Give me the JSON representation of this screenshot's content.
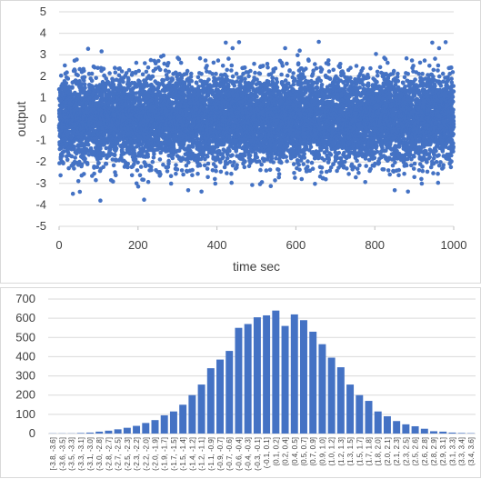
{
  "chart_data": [
    {
      "type": "scatter",
      "title": "",
      "xlabel": "time sec",
      "ylabel": "output",
      "xlim": [
        0,
        1000
      ],
      "ylim": [
        -5,
        5
      ],
      "xticks": [
        0,
        200,
        400,
        600,
        800,
        1000
      ],
      "yticks": [
        -5,
        -4,
        -3,
        -2,
        -1,
        0,
        1,
        2,
        3,
        4,
        5
      ],
      "grid": "horizontal",
      "legend": "none",
      "marker_color": "#4472C4",
      "n_points": 10000,
      "distribution": "normal",
      "mean": 0,
      "std_dev": 1
    },
    {
      "type": "bar",
      "title": "",
      "xlabel": "",
      "ylabel": "",
      "ylim": [
        0,
        700
      ],
      "yticks": [
        0,
        100,
        200,
        300,
        400,
        500,
        600,
        700
      ],
      "grid": "horizontal",
      "legend": "none",
      "bar_color": "#4472C4",
      "categories": [
        "[-3.8, -3.6]",
        "(-3.6, -3.5]",
        "(-3.5, -3.3]",
        "(-3.3, -3.1]",
        "(-3.1, -3.0]",
        "(-3.0, -2.8]",
        "(-2.8, -2.7]",
        "(-2.7, -2.5]",
        "(-2.5, -2.3]",
        "(-2.3, -2.2]",
        "(-2.2, -2.0]",
        "(-2.0, -1.9]",
        "(-1.9, -1.7]",
        "(-1.7, -1.5]",
        "(-1.5, -1.4]",
        "(-1.4, -1.2]",
        "(-1.2, -1.1]",
        "(-1.1, -0.9]",
        "(-0.9, -0.7]",
        "(-0.7, -0.6]",
        "(-0.6, -0.4]",
        "(-0.4, -0.3]",
        "(-0.3, -0.1]",
        "(-0.1, 0.1]",
        "(0.1, 0.2]",
        "(0.2, 0.4]",
        "(0.4, 0.5]",
        "(0.5, 0.7]",
        "(0.7, 0.9]",
        "(0.9, 1.0]",
        "(1.0, 1.2]",
        "(1.2, 1.3]",
        "(1.3, 1.5]",
        "(1.5, 1.7]",
        "(1.7, 1.8]",
        "(1.8, 2.0]",
        "(2.0, 2.1]",
        "(2.1, 2.3]",
        "(2.3, 2.5]",
        "(2.5, 2.6]",
        "(2.6, 2.8]",
        "(2.8, 2.9]",
        "(2.9, 3.1]",
        "(3.1, 3.3]",
        "(3.3, 3.4]",
        "(3.4, 3.6]"
      ],
      "values": [
        1,
        1,
        1,
        3,
        5,
        10,
        15,
        22,
        30,
        40,
        55,
        70,
        95,
        115,
        150,
        200,
        255,
        340,
        385,
        430,
        550,
        570,
        605,
        615,
        640,
        560,
        620,
        590,
        530,
        465,
        395,
        345,
        255,
        200,
        170,
        115,
        90,
        65,
        48,
        38,
        25,
        12,
        10,
        5,
        3,
        2
      ]
    }
  ]
}
